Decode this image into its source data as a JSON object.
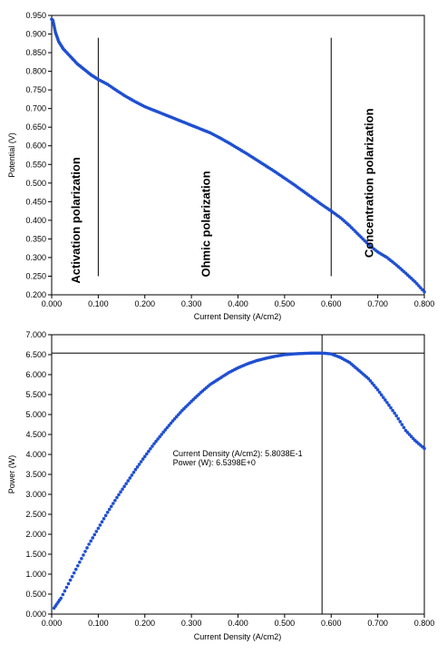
{
  "chart_data": [
    {
      "type": "scatter",
      "id": "polarization",
      "xlabel": "Current Density (A/cm2)",
      "ylabel": "Potential (V)",
      "xlim": [
        0.0,
        0.8
      ],
      "ylim": [
        0.2,
        0.95
      ],
      "x_ticks": [
        "0.000",
        "0.100",
        "0.200",
        "0.300",
        "0.400",
        "0.500",
        "0.600",
        "0.700",
        "0.800"
      ],
      "y_ticks": [
        "0.200",
        "0.250",
        "0.300",
        "0.350",
        "0.400",
        "0.450",
        "0.500",
        "0.550",
        "0.600",
        "0.650",
        "0.700",
        "0.750",
        "0.800",
        "0.850",
        "0.900",
        "0.950"
      ],
      "series_color": "#1f4fd1",
      "x": [
        0.0,
        0.003,
        0.008,
        0.015,
        0.025,
        0.04,
        0.055,
        0.07,
        0.085,
        0.1,
        0.12,
        0.14,
        0.16,
        0.18,
        0.2,
        0.22,
        0.24,
        0.26,
        0.28,
        0.3,
        0.32,
        0.34,
        0.36,
        0.38,
        0.4,
        0.42,
        0.44,
        0.46,
        0.48,
        0.5,
        0.52,
        0.54,
        0.56,
        0.58,
        0.6,
        0.62,
        0.64,
        0.66,
        0.68,
        0.7,
        0.72,
        0.74,
        0.76,
        0.78,
        0.8
      ],
      "y": [
        0.94,
        0.935,
        0.905,
        0.88,
        0.86,
        0.84,
        0.82,
        0.805,
        0.79,
        0.778,
        0.765,
        0.748,
        0.732,
        0.718,
        0.705,
        0.695,
        0.685,
        0.675,
        0.665,
        0.655,
        0.645,
        0.635,
        0.622,
        0.608,
        0.593,
        0.578,
        0.562,
        0.546,
        0.53,
        0.513,
        0.496,
        0.478,
        0.46,
        0.442,
        0.425,
        0.407,
        0.385,
        0.36,
        0.335,
        0.315,
        0.3,
        0.28,
        0.258,
        0.235,
        0.208
      ],
      "vlines": [
        0.1,
        0.6
      ],
      "vline_range": [
        0.25,
        0.89
      ],
      "regions": [
        {
          "label": "Activation polarization",
          "x": 0.06,
          "y": 0.4
        },
        {
          "label": "Ohmic polarization",
          "x": 0.34,
          "y": 0.39
        },
        {
          "label": "Concentration polarization",
          "x": 0.69,
          "y": 0.5
        }
      ]
    },
    {
      "type": "scatter",
      "id": "power",
      "xlabel": "Current Density (A/cm2)",
      "ylabel": "Power (W)",
      "xlim": [
        0.0,
        0.8
      ],
      "ylim": [
        0.0,
        7.0
      ],
      "x_ticks": [
        "0.000",
        "0.100",
        "0.200",
        "0.300",
        "0.400",
        "0.500",
        "0.600",
        "0.700",
        "0.800"
      ],
      "y_ticks": [
        "0.000",
        "0.500",
        "1.000",
        "1.500",
        "2.000",
        "2.500",
        "3.000",
        "3.500",
        "4.000",
        "4.500",
        "5.000",
        "5.500",
        "6.000",
        "6.500",
        "7.000"
      ],
      "series_color": "#1f4fd1",
      "x": [
        0.005,
        0.02,
        0.04,
        0.06,
        0.08,
        0.1,
        0.12,
        0.14,
        0.16,
        0.18,
        0.2,
        0.22,
        0.24,
        0.26,
        0.28,
        0.3,
        0.32,
        0.34,
        0.36,
        0.38,
        0.4,
        0.42,
        0.44,
        0.46,
        0.48,
        0.5,
        0.52,
        0.54,
        0.56,
        0.58,
        0.6,
        0.62,
        0.64,
        0.66,
        0.68,
        0.7,
        0.72,
        0.74,
        0.76,
        0.78,
        0.8
      ],
      "y": [
        0.15,
        0.4,
        0.85,
        1.3,
        1.75,
        2.15,
        2.55,
        2.92,
        3.27,
        3.62,
        3.95,
        4.27,
        4.56,
        4.84,
        5.1,
        5.33,
        5.55,
        5.75,
        5.9,
        6.05,
        6.17,
        6.27,
        6.35,
        6.41,
        6.46,
        6.5,
        6.52,
        6.53,
        6.54,
        6.54,
        6.52,
        6.43,
        6.3,
        6.1,
        5.9,
        5.62,
        5.3,
        4.97,
        4.6,
        4.35,
        4.15
      ],
      "crosshair": {
        "x": 0.58038,
        "y": 6.5398
      },
      "annotation": [
        "Current Density (A/cm2): 5.8038E-1",
        "Power (W): 6.5398E+0"
      ]
    }
  ]
}
